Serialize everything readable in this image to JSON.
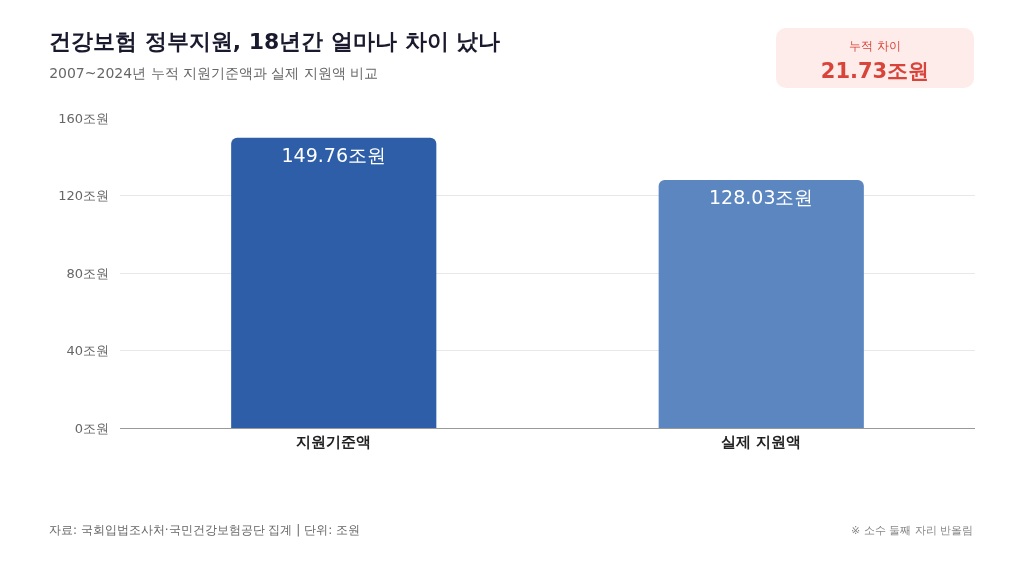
{
  "chart_data": {
    "type": "bar",
    "title": "건강보험 정부지원, 18년간 얼마나 차이 났나",
    "subtitle": "2007~2024년 누적 지원기준액과 실제 지원액 비교",
    "categories": [
      "지원기준액",
      "실제 지원액"
    ],
    "values": [
      149.76,
      128.03
    ],
    "colors": [
      "#2e5ea8",
      "#5b86c0"
    ],
    "value_labels": [
      "149.76조원",
      "128.03조원"
    ],
    "ylim": [
      0,
      160
    ],
    "yticks": [
      {
        "value": 0,
        "label": "0조원"
      },
      {
        "value": 40,
        "label": "40조원"
      },
      {
        "value": 80,
        "label": "80조원"
      },
      {
        "value": 120,
        "label": "120조원"
      },
      {
        "value": 160,
        "label": "160조원"
      }
    ],
    "grid": "y",
    "annotations": [
      "누적 차이",
      "21.73조원",
      "자료: 국회입법조사처·국민건강보험공단 집계 | 단위: 조원",
      "※ 소수 둘째 자리 반올림"
    ]
  }
}
